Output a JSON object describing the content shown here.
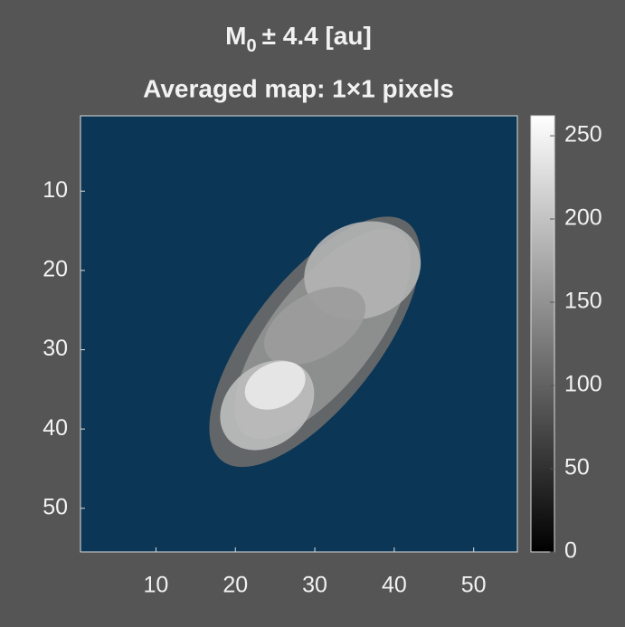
{
  "chart_data": {
    "type": "image",
    "title": {
      "main": "M",
      "subscript": "0",
      "rest": "± 4.4 [au]"
    },
    "subtitle": "Averaged map: 1×1 pixels",
    "xlim": [
      0.5,
      55.5
    ],
    "ylim": [
      0.5,
      55.5
    ],
    "y_reversed": true,
    "xticks": [
      10,
      20,
      30,
      40,
      50
    ],
    "yticks": [
      10,
      20,
      30,
      40,
      50
    ],
    "nan_color": "#0b3655",
    "colormap": "gray",
    "clim": [
      0,
      262
    ],
    "colorbar_ticks": [
      0,
      50,
      100,
      150,
      200,
      250
    ],
    "blobs": [
      {
        "x": 30,
        "y": 29,
        "rx": 19,
        "ry": 8,
        "angle": -52,
        "value": 110
      },
      {
        "x": 31,
        "y": 28,
        "rx": 16,
        "ry": 6.5,
        "angle": -52,
        "value": 150
      },
      {
        "x": 36,
        "y": 20,
        "rx": 7.5,
        "ry": 6,
        "angle": -20,
        "value": 185
      },
      {
        "x": 30,
        "y": 27,
        "rx": 7,
        "ry": 4,
        "angle": -30,
        "value": 160
      },
      {
        "x": 24,
        "y": 37,
        "rx": 6.5,
        "ry": 5,
        "angle": -40,
        "value": 195
      },
      {
        "x": 25,
        "y": 34.5,
        "rx": 4,
        "ry": 2.8,
        "angle": -25,
        "value": 240
      }
    ]
  }
}
